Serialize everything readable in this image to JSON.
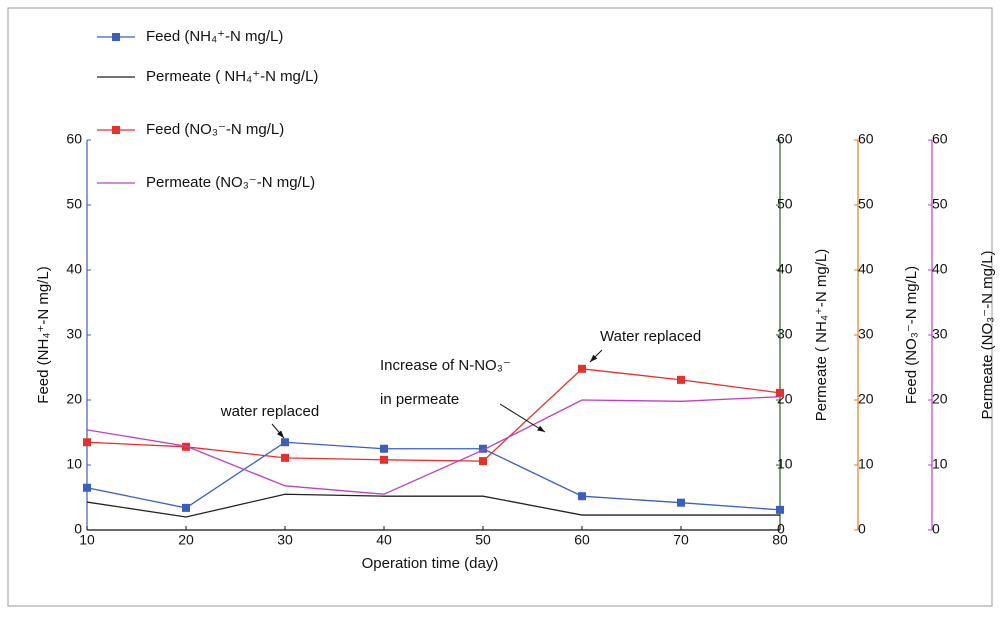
{
  "chart_data": {
    "type": "line",
    "xlabel": "Operation time (day)",
    "x": [
      10,
      20,
      30,
      40,
      50,
      60,
      70,
      80
    ],
    "xlim": [
      10,
      80
    ],
    "xticks": [
      10,
      20,
      30,
      40,
      50,
      60,
      70,
      80
    ],
    "ylabel": "Feed (NH₄⁺-N mg/L)",
    "ycolor": "#3a5fc0",
    "ylim": [
      0,
      60
    ],
    "yticks": [
      0,
      10,
      20,
      30,
      40,
      50,
      60
    ],
    "y2label": "Permeate ( NH₄⁺-N mg/L)",
    "y2color": "#1e6b1e",
    "y2lim": [
      0,
      60
    ],
    "y2ticks": [
      0,
      10,
      20,
      30,
      40,
      50,
      60
    ],
    "y3label": "Feed (NO₃⁻-N  mg/L)",
    "y3color": "#f07a1a",
    "y3lim": [
      0,
      60
    ],
    "y3ticks": [
      0,
      10,
      20,
      30,
      40,
      50,
      60
    ],
    "y4label": "Permeate (NO₃⁻-N  mg/L)",
    "y4color": "#c040c0",
    "y4lim": [
      0,
      60
    ],
    "y4ticks": [
      0,
      10,
      20,
      30,
      40,
      50,
      60
    ],
    "legend": "upper left",
    "series": [
      {
        "name": "Feed (NH₄⁺-N mg/L)",
        "color": "#3a5fc0",
        "marker": "square",
        "axis": "y",
        "values": [
          6.5,
          3.4,
          13.5,
          12.5,
          12.5,
          5.2,
          4.2,
          3.1
        ]
      },
      {
        "name": "Permeate ( NH₄⁺-N mg/L)",
        "color": "#222222",
        "marker": "none",
        "axis": "y2",
        "values": [
          4.3,
          2.0,
          5.5,
          5.2,
          5.2,
          2.3,
          2.3,
          2.3
        ]
      },
      {
        "name": "Feed (NO₃⁻-N mg/L)",
        "color": "#e8302a",
        "marker": "square",
        "axis": "y3",
        "values": [
          13.5,
          12.8,
          11.1,
          10.8,
          10.6,
          24.8,
          23.1,
          21.1
        ]
      },
      {
        "name": "Permeate (NO₃⁻-N mg/L)",
        "color": "#c040c0",
        "marker": "none",
        "axis": "y4",
        "values": [
          15.4,
          12.9,
          6.8,
          5.5,
          12.3,
          20.0,
          19.8,
          20.5
        ]
      }
    ],
    "annotations": [
      "water replaced",
      "Increase of N-NO₃⁻",
      "in permeate",
      "Water replaced"
    ]
  }
}
